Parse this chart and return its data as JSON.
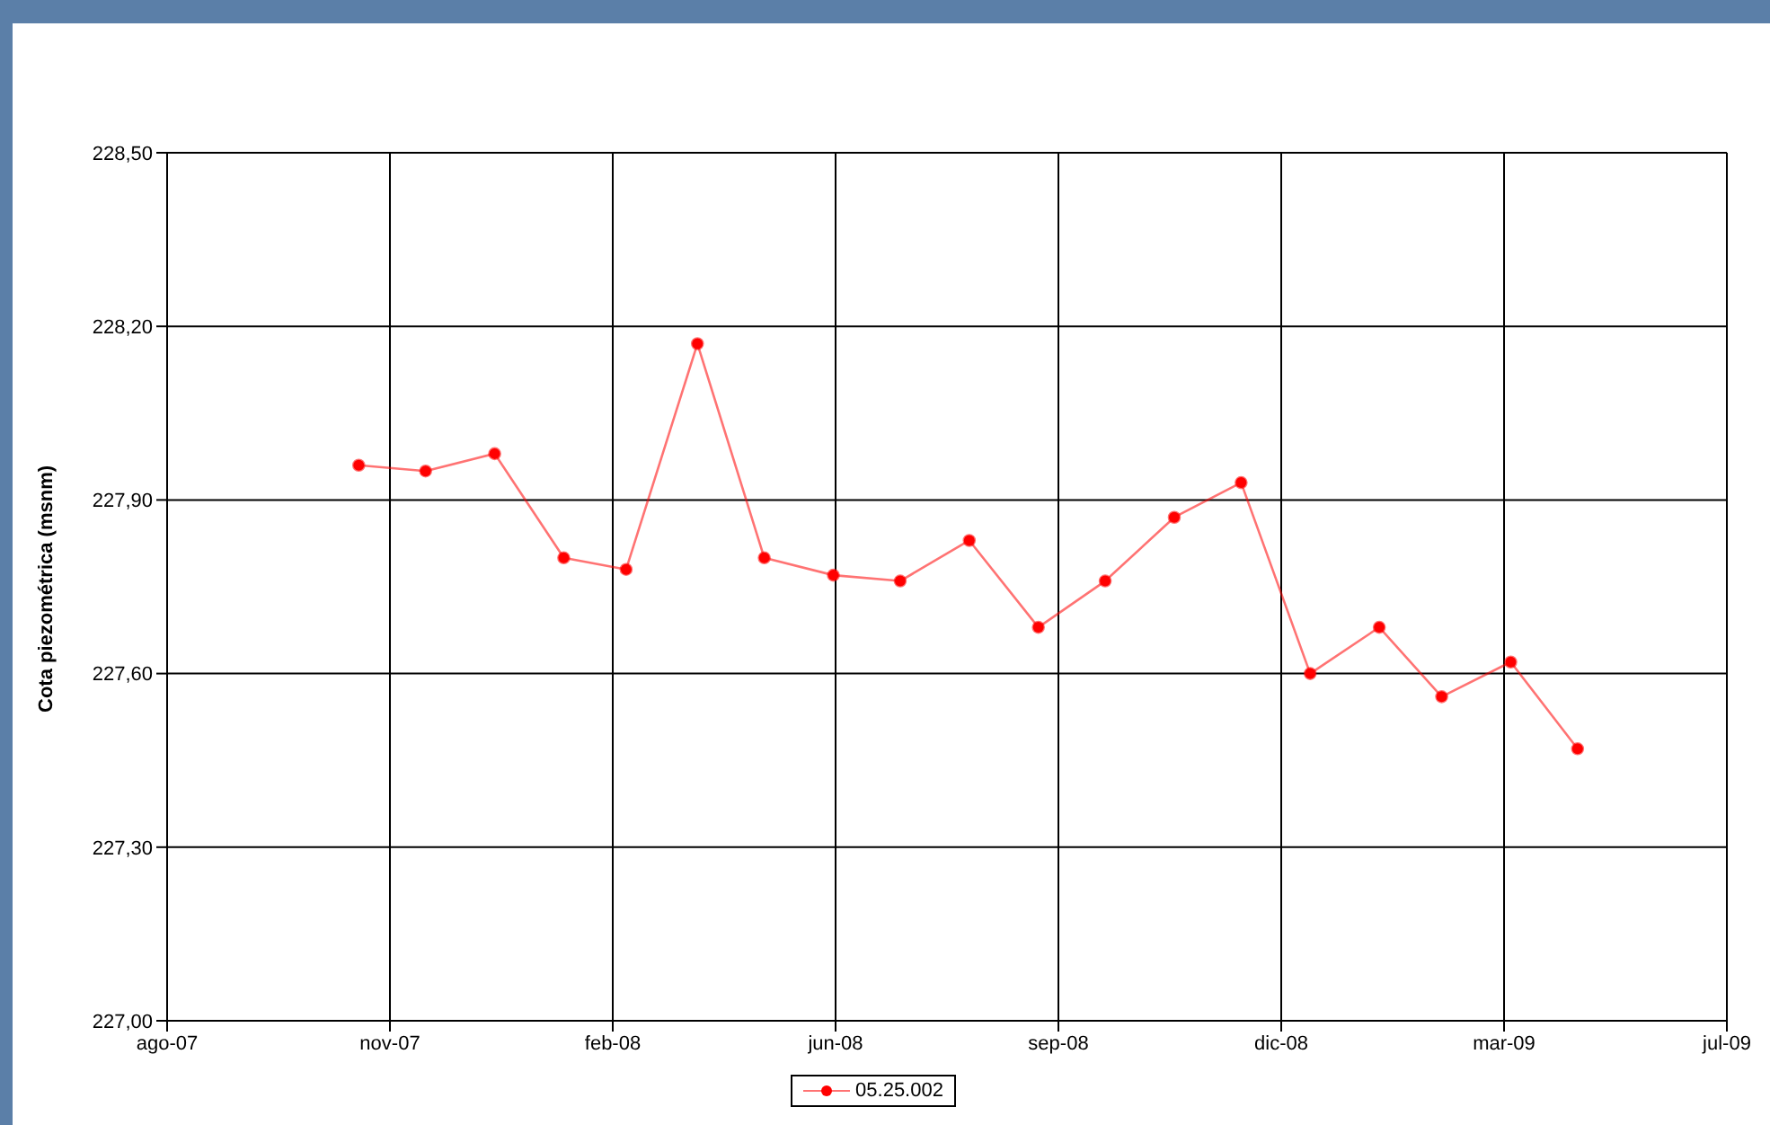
{
  "chart_data": {
    "type": "line",
    "ylabel": "Cota piezométrica (msnm)",
    "x": [
      "2007-10-31",
      "2007-11-30",
      "2007-12-31",
      "2008-01-31",
      "2008-02-28",
      "2008-03-31",
      "2008-04-30",
      "2008-05-31",
      "2008-06-30",
      "2008-07-31",
      "2008-08-31",
      "2008-09-30",
      "2008-10-31",
      "2008-11-30",
      "2008-12-31",
      "2009-01-31",
      "2009-02-28",
      "2009-03-31",
      "2009-04-30"
    ],
    "series": [
      {
        "name": "05.25.002",
        "color": "#ff0000",
        "values": [
          227.96,
          227.95,
          227.98,
          227.8,
          227.78,
          228.17,
          227.8,
          227.77,
          227.76,
          227.83,
          227.68,
          227.76,
          227.87,
          227.93,
          227.6,
          227.68,
          227.56,
          227.62,
          227.47
        ]
      }
    ],
    "xlim": [
      "2007-08-06",
      "2009-07-06"
    ],
    "xticks": [
      {
        "value": "2007-08-06",
        "label": "ago-07"
      },
      {
        "value": "2007-11-14",
        "label": "nov-07"
      },
      {
        "value": "2008-02-22",
        "label": "feb-08"
      },
      {
        "value": "2008-06-01",
        "label": "jun-08"
      },
      {
        "value": "2008-09-09",
        "label": "sep-08"
      },
      {
        "value": "2008-12-18",
        "label": "dic-08"
      },
      {
        "value": "2009-03-28",
        "label": "mar-09"
      },
      {
        "value": "2009-07-06",
        "label": "jul-09"
      }
    ],
    "ylim": [
      227.0,
      228.5
    ],
    "yticks": [
      {
        "value": 227.0,
        "label": "227,00"
      },
      {
        "value": 227.3,
        "label": "227,30"
      },
      {
        "value": 227.6,
        "label": "227,60"
      },
      {
        "value": 227.9,
        "label": "227,90"
      },
      {
        "value": 228.2,
        "label": "228,20"
      },
      {
        "value": 228.5,
        "label": "228,50"
      }
    ],
    "grid": true,
    "legend": "bottom",
    "marker": "circle",
    "line_style": "solid"
  }
}
